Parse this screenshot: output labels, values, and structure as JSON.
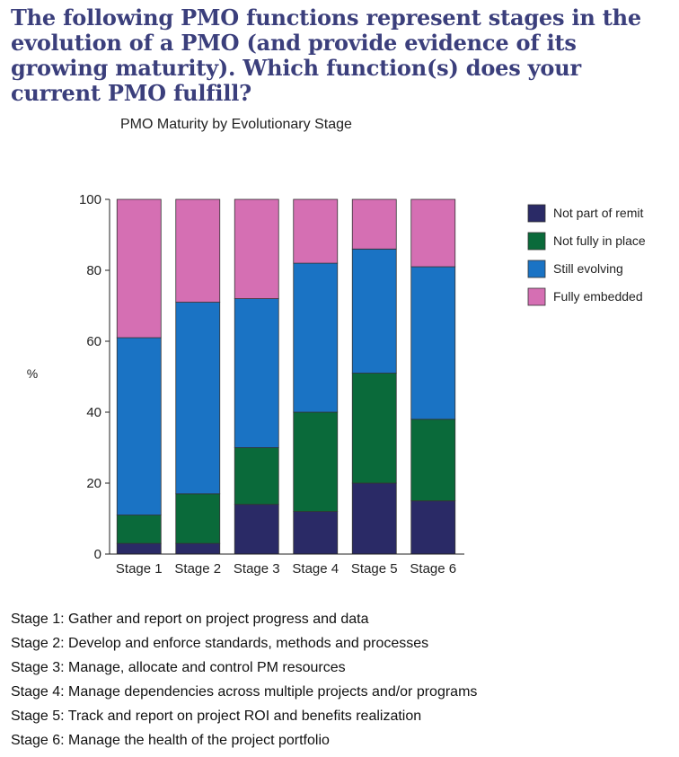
{
  "heading": "The following PMO functions represent stages in the evolution of a PMO (and provide evidence of its growing maturity). Which function(s) does your current PMO fulfill?",
  "chart_data": {
    "type": "bar",
    "stacked": true,
    "title": "PMO Maturity by Evolutionary Stage",
    "xlabel": "",
    "ylabel": "%",
    "ylim": [
      0,
      100
    ],
    "yticks": [
      0,
      20,
      40,
      60,
      80,
      100
    ],
    "grid": false,
    "legend_position": "right",
    "categories": [
      "Stage 1",
      "Stage 2",
      "Stage 3",
      "Stage 4",
      "Stage 5",
      "Stage 6"
    ],
    "series": [
      {
        "name": "Not part of remit",
        "color": "#2a2a66",
        "values": [
          3,
          3,
          14,
          12,
          20,
          15
        ]
      },
      {
        "name": "Not fully in place",
        "color": "#0a6a3a",
        "values": [
          8,
          14,
          16,
          28,
          31,
          23
        ]
      },
      {
        "name": "Still evolving",
        "color": "#1a73c4",
        "values": [
          50,
          54,
          42,
          42,
          35,
          43
        ]
      },
      {
        "name": "Fully embedded",
        "color": "#d56fb3",
        "values": [
          39,
          29,
          28,
          18,
          14,
          19
        ]
      }
    ]
  },
  "notes": [
    "Stage 1: Gather and report on project progress and data",
    "Stage 2: Develop and enforce standards, methods and processes",
    "Stage 3: Manage, allocate and control PM resources",
    "Stage 4: Manage dependencies across multiple projects and/or programs",
    "Stage 5: Track and report on project ROI and benefits realization",
    "Stage 6: Manage the health of the project portfolio"
  ]
}
